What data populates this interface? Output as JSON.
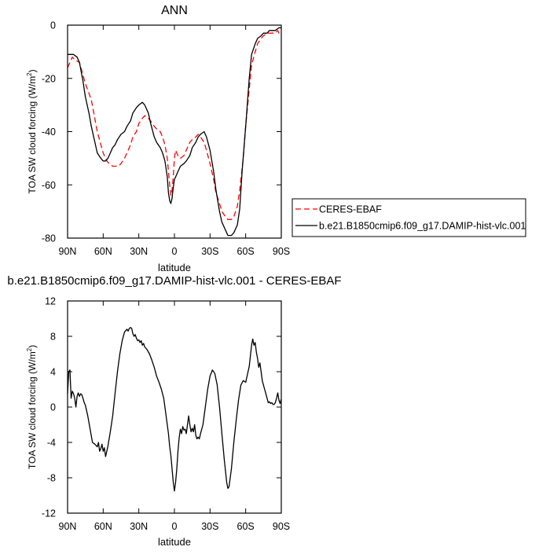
{
  "chart_data": [
    {
      "type": "line",
      "title": "ANN",
      "xlabel": "latitude",
      "ylabel": "TOA SW cloud forcing (W/m²)",
      "ylabel_base": "TOA SW cloud forcing (W/m",
      "ylabel_sup": "2",
      "ylabel_close": ")",
      "xlim": [
        90,
        -90
      ],
      "ylim": [
        -80,
        0
      ],
      "x_ticks": [
        90,
        60,
        30,
        0,
        -30,
        -60,
        -90
      ],
      "x_tick_labels": [
        "90N",
        "60N",
        "30N",
        "0",
        "30S",
        "60S",
        "90S"
      ],
      "y_ticks": [
        0,
        -20,
        -40,
        -60,
        -80
      ],
      "y_tick_labels": [
        "0",
        "-20",
        "-40",
        "-60",
        "-80"
      ],
      "legend": {
        "placement": "right",
        "entries": [
          {
            "name": "CERES-EBAF",
            "color": "#ff0000",
            "dash": "dashed"
          },
          {
            "name": "b.e21.B1850cmip6.f09_g17.DAMIP-hist-vlc.001",
            "color": "#000000",
            "dash": "solid"
          }
        ]
      },
      "series": [
        {
          "name": "CERES-EBAF",
          "color": "#ff0000",
          "dash": "dashed",
          "x": [
            90,
            88,
            86,
            84,
            80,
            75,
            70,
            65,
            60,
            57,
            55,
            52,
            50,
            47,
            45,
            42,
            40,
            37,
            35,
            32,
            30,
            27,
            25,
            22,
            20,
            17,
            15,
            12,
            10,
            8,
            6,
            5,
            4,
            3,
            2,
            1,
            0,
            -1,
            -2,
            -3,
            -5,
            -8,
            -10,
            -13,
            -15,
            -18,
            -20,
            -22,
            -25,
            -27,
            -30,
            -33,
            -35,
            -38,
            -40,
            -43,
            -45,
            -48,
            -50,
            -53,
            -55,
            -58,
            -60,
            -63,
            -65,
            -68,
            -70,
            -73,
            -75,
            -78,
            -80,
            -82,
            -85,
            -87,
            -88,
            -90
          ],
          "y": [
            -16,
            -14,
            -12,
            -13,
            -14,
            -22,
            -28,
            -40,
            -48,
            -51,
            -52,
            -53,
            -53,
            -53,
            -52,
            -50,
            -48,
            -45,
            -42,
            -40,
            -37,
            -35,
            -34,
            -35,
            -36,
            -38,
            -39,
            -40,
            -42,
            -45,
            -50,
            -55,
            -60,
            -64,
            -62,
            -57,
            -50,
            -47,
            -48,
            -49,
            -50,
            -49,
            -47,
            -44,
            -43,
            -42,
            -41,
            -42,
            -44,
            -47,
            -52,
            -58,
            -63,
            -67,
            -70,
            -72,
            -73,
            -73,
            -72,
            -68,
            -62,
            -50,
            -38,
            -24,
            -15,
            -10,
            -7,
            -5,
            -4,
            -3,
            -3,
            -3,
            -3,
            -2,
            -3,
            -2
          ]
        },
        {
          "name": "b.e21.B1850cmip6.f09_g17.DAMIP-hist-vlc.001",
          "color": "#000000",
          "dash": "solid",
          "x": [
            90,
            88,
            85,
            82,
            80,
            77,
            75,
            72,
            70,
            67,
            65,
            62,
            60,
            58,
            56,
            54,
            52,
            50,
            48,
            45,
            42,
            40,
            37,
            35,
            32,
            30,
            27,
            25,
            22,
            20,
            17,
            15,
            12,
            10,
            8,
            6,
            5,
            4,
            3,
            2,
            1,
            0,
            -1,
            -2,
            -3,
            -5,
            -8,
            -10,
            -13,
            -15,
            -18,
            -20,
            -22,
            -25,
            -27,
            -30,
            -33,
            -35,
            -38,
            -40,
            -43,
            -45,
            -48,
            -50,
            -53,
            -55,
            -57,
            -60,
            -63,
            -65,
            -68,
            -70,
            -73,
            -75,
            -78,
            -80,
            -82,
            -85,
            -88,
            -90
          ],
          "y": [
            -11,
            -11,
            -11,
            -12,
            -14,
            -21,
            -27,
            -33,
            -38,
            -44,
            -48,
            -50,
            -51,
            -51,
            -50,
            -48,
            -46,
            -45,
            -43,
            -41,
            -40,
            -38,
            -36,
            -33,
            -31,
            -30,
            -29,
            -30,
            -33,
            -37,
            -42,
            -44,
            -46,
            -48,
            -51,
            -57,
            -63,
            -66,
            -67,
            -65,
            -61,
            -58,
            -57,
            -56,
            -55,
            -53,
            -52,
            -51,
            -49,
            -46,
            -44,
            -42,
            -41,
            -40,
            -42,
            -47,
            -55,
            -62,
            -70,
            -74,
            -77,
            -79,
            -79,
            -78,
            -75,
            -69,
            -55,
            -38,
            -20,
            -11,
            -7,
            -5,
            -4,
            -3,
            -3,
            -2,
            -2,
            -2,
            -1,
            -1
          ]
        }
      ]
    },
    {
      "type": "line",
      "title": "b.e21.B1850cmip6.f09_g17.DAMIP-hist-vlc.001 - CERES-EBAF",
      "xlabel": "latitude",
      "ylabel": "TOA SW cloud forcing (W/m²)",
      "ylabel_base": "TOA SW cloud forcing (W/m",
      "ylabel_sup": "2",
      "ylabel_close": ")",
      "xlim": [
        90,
        -90
      ],
      "ylim": [
        -12,
        12
      ],
      "x_ticks": [
        90,
        60,
        30,
        0,
        -30,
        -60,
        -90
      ],
      "x_tick_labels": [
        "90N",
        "60N",
        "30N",
        "0",
        "30S",
        "60S",
        "90S"
      ],
      "y_ticks": [
        12,
        8,
        4,
        0,
        -4,
        -8,
        -12
      ],
      "y_tick_labels": [
        "12",
        "8",
        "4",
        "0",
        "-4",
        "-8",
        "-12"
      ],
      "series": [
        {
          "color": "#000000",
          "dash": "solid",
          "x": [
            90,
            89,
            88,
            87,
            86,
            85,
            84,
            83,
            82,
            81,
            80,
            79,
            78,
            77,
            76,
            75,
            73,
            71,
            69,
            67,
            65,
            64,
            63,
            62,
            61,
            60,
            59,
            58,
            56,
            54,
            52,
            50,
            48,
            46,
            44,
            42,
            40,
            39,
            38,
            37,
            36,
            35,
            34,
            33,
            32,
            31,
            30,
            29,
            28,
            27,
            26,
            25,
            23,
            21,
            19,
            17,
            15,
            13,
            11,
            9,
            7,
            5,
            4,
            3,
            2,
            1,
            0,
            -1,
            -2,
            -3,
            -4,
            -5,
            -6,
            -7,
            -8,
            -9,
            -10,
            -11,
            -12,
            -13,
            -14,
            -15,
            -16,
            -17,
            -18,
            -19,
            -20,
            -21,
            -22,
            -24,
            -26,
            -28,
            -30,
            -32,
            -34,
            -36,
            -38,
            -40,
            -42,
            -44,
            -45,
            -46,
            -48,
            -50,
            -52,
            -54,
            -56,
            -58,
            -60,
            -62,
            -63,
            -64,
            -65,
            -66,
            -67,
            -68,
            -69,
            -70,
            -71,
            -72,
            -73,
            -74,
            -75,
            -76,
            -77,
            -78,
            -79,
            -80,
            -81,
            -82,
            -83,
            -84,
            -85,
            -86,
            -87,
            -88,
            -89,
            -90
          ],
          "y": [
            1.5,
            4.0,
            4.2,
            1.0,
            1.8,
            1.5,
            1.0,
            0.0,
            1.2,
            1.6,
            1.2,
            1.5,
            1.4,
            1.0,
            0.5,
            0.2,
            -1.0,
            -2.5,
            -4.0,
            -4.2,
            -4.5,
            -4.0,
            -5.0,
            -4.7,
            -4.2,
            -5.0,
            -4.6,
            -5.6,
            -4.4,
            -2.8,
            -1.0,
            1.5,
            4.0,
            6.0,
            7.5,
            8.5,
            8.8,
            8.6,
            8.9,
            9.0,
            8.9,
            8.3,
            8.0,
            8.2,
            7.8,
            7.5,
            7.6,
            7.3,
            7.5,
            7.0,
            7.2,
            6.8,
            6.5,
            6.0,
            5.3,
            4.5,
            3.5,
            2.8,
            2.0,
            1.0,
            -1.0,
            -3.0,
            -4.5,
            -5.5,
            -7.0,
            -8.5,
            -9.5,
            -8.5,
            -7.0,
            -5.0,
            -3.5,
            -2.5,
            -3.0,
            -2.2,
            -2.6,
            -2.5,
            -3.0,
            -2.0,
            -1.0,
            -2.0,
            -2.8,
            -2.4,
            -2.8,
            -2.0,
            -3.2,
            -3.6,
            -3.4,
            -3.6,
            -3.0,
            -2.0,
            0.0,
            2.0,
            3.5,
            4.2,
            3.8,
            2.5,
            0.0,
            -3.0,
            -6.0,
            -8.5,
            -9.2,
            -9.0,
            -7.0,
            -4.0,
            -1.5,
            0.8,
            2.5,
            3.0,
            2.8,
            4.0,
            4.6,
            5.8,
            7.0,
            7.7,
            7.0,
            7.3,
            6.2,
            5.5,
            4.5,
            5.0,
            4.0,
            3.0,
            2.5,
            2.0,
            1.5,
            1.0,
            0.5,
            0.6,
            0.4,
            0.5,
            0.3,
            0.3,
            0.5,
            1.0,
            1.6,
            0.8,
            0.4,
            0.9
          ]
        }
      ]
    }
  ]
}
